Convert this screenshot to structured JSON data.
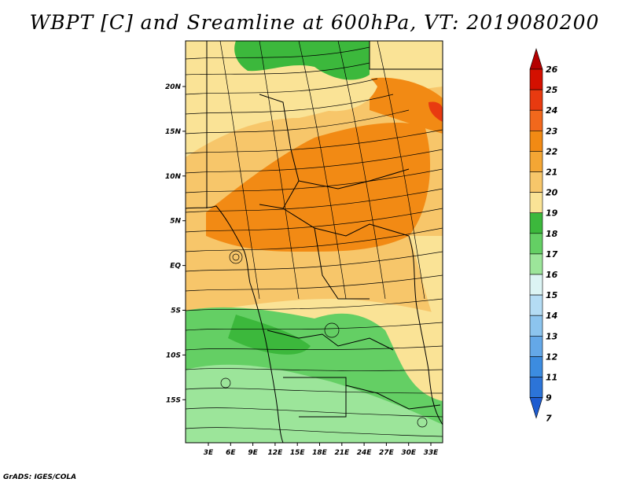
{
  "title": "WBPT [C] and Sreamline at 600hPa, VT: 2019080200",
  "credit": "GrADS: IGES/COLA",
  "lat_labels": [
    "20N",
    "15N",
    "10N",
    "5N",
    "EQ",
    "5S",
    "10S",
    "15S"
  ],
  "lon_labels": [
    "3E",
    "6E",
    "9E",
    "12E",
    "15E",
    "18E",
    "21E",
    "24E",
    "27E",
    "30E",
    "33E"
  ],
  "colorbar": {
    "labels": [
      "26",
      "25",
      "24",
      "23",
      "22",
      "21",
      "20",
      "19",
      "18",
      "17",
      "16",
      "15",
      "14",
      "13",
      "12",
      "11",
      "9",
      "7"
    ],
    "colors": [
      "#b40000",
      "#d41000",
      "#e83a10",
      "#f2681c",
      "#f28a14",
      "#f4a634",
      "#f7c66a",
      "#fae396",
      "#3cb83c",
      "#64cf64",
      "#9ce59a",
      "#dcf4f4",
      "#b4dcf4",
      "#8cc4ee",
      "#64a8e8",
      "#3c8ce0",
      "#2c74d8",
      "#1e5cd0"
    ]
  },
  "map_colors": {
    "warm_high": "#f28a14",
    "warm_mid": "#f7c66a",
    "warm_low": "#fae396",
    "green_dark": "#3cb83c",
    "green_mid": "#64cf64",
    "green_light": "#9ce59a"
  }
}
